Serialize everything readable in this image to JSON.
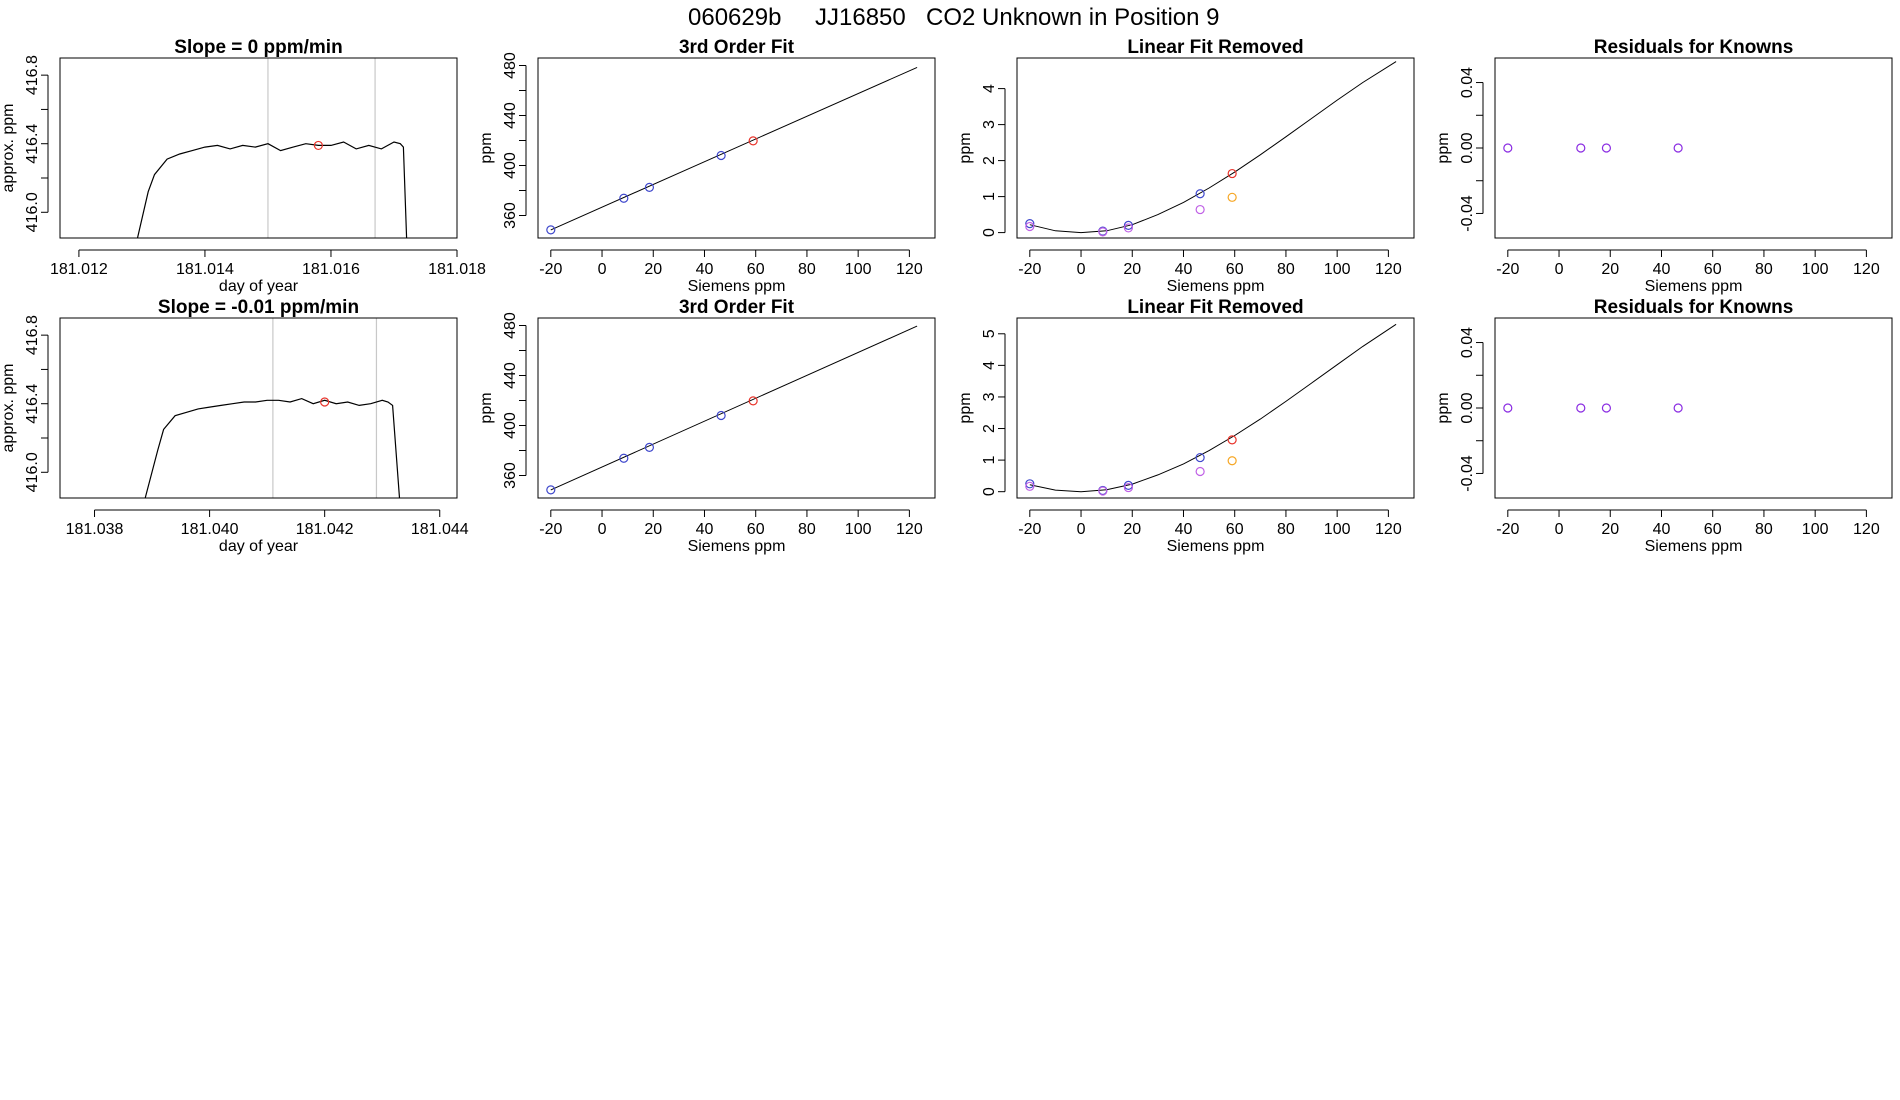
{
  "title_parts": [
    "060629b",
    "JJ16850",
    "CO2 Unknown in Position  9"
  ],
  "chart_data": [
    {
      "type": "line",
      "title": "Slope =  0  ppm/min",
      "xlabel": "day of year",
      "ylabel": "approx. ppm",
      "xlim": [
        181.0117,
        181.018
      ],
      "ylim": [
        415.85,
        416.9
      ],
      "xticks": [
        "181.012",
        "181.014",
        "181.016",
        "181.018"
      ],
      "xtick_values": [
        181.012,
        181.014,
        181.016,
        181.018
      ],
      "yticks": [
        "416.0",
        "416.4",
        "416.8"
      ],
      "ytick_values": [
        416.0,
        416.4,
        416.8
      ],
      "ytick_minor": [
        416.2,
        416.6
      ],
      "vlines": [
        181.015,
        181.0167
      ],
      "series": [
        {
          "x": [
            181.01293,
            181.0131,
            181.0132,
            181.0134,
            181.0136,
            181.0138,
            181.014,
            181.0142,
            181.0144,
            181.0146,
            181.0148,
            181.015,
            181.0152,
            181.0154,
            181.0156,
            181.0158,
            181.016,
            181.0162,
            181.0164,
            181.0166,
            181.0168,
            181.017,
            181.0171,
            181.01715,
            181.0172
          ],
          "y": [
            415.85,
            416.12,
            416.22,
            416.31,
            416.34,
            416.36,
            416.38,
            416.39,
            416.37,
            416.39,
            416.38,
            416.4,
            416.36,
            416.38,
            416.4,
            416.39,
            416.39,
            416.41,
            416.37,
            416.39,
            416.37,
            416.41,
            416.4,
            416.38,
            415.85
          ],
          "color": "#000000"
        }
      ],
      "points": [
        {
          "x": 181.0158,
          "y": 416.39,
          "color": "#e8332a"
        }
      ]
    },
    {
      "type": "scatter",
      "title": "3rd Order Fit",
      "xlabel": "Siemens ppm",
      "ylabel": "ppm",
      "xlim": [
        -25,
        130
      ],
      "ylim": [
        342,
        486
      ],
      "xticks": [
        "-20",
        "0",
        "20",
        "40",
        "60",
        "80",
        "100",
        "120"
      ],
      "xtick_values": [
        -20,
        0,
        20,
        40,
        60,
        80,
        100,
        120
      ],
      "yticks": [
        "360",
        "400",
        "440",
        "480"
      ],
      "ytick_values": [
        360,
        400,
        440,
        480
      ],
      "ytick_minor": [
        380,
        420,
        460
      ],
      "curve": {
        "x": [
          -20,
          123
        ],
        "y": [
          348.5,
          478.5
        ]
      },
      "points": [
        {
          "x": -20,
          "y": 348.5,
          "color": "#3f48cc"
        },
        {
          "x": 8.5,
          "y": 373.8,
          "color": "#3f48cc"
        },
        {
          "x": 18.5,
          "y": 382.5,
          "color": "#3f48cc"
        },
        {
          "x": 46.5,
          "y": 408.0,
          "color": "#3f48cc"
        },
        {
          "x": 59,
          "y": 419.7,
          "color": "#e8332a"
        }
      ]
    },
    {
      "type": "scatter",
      "title": "Linear Fit Removed",
      "xlabel": "Siemens ppm",
      "ylabel": "ppm",
      "xlim": [
        -25,
        130
      ],
      "ylim": [
        -0.15,
        4.85
      ],
      "xticks": [
        "-20",
        "0",
        "20",
        "40",
        "60",
        "80",
        "100",
        "120"
      ],
      "xtick_values": [
        -20,
        0,
        20,
        40,
        60,
        80,
        100,
        120
      ],
      "yticks": [
        "0",
        "1",
        "2",
        "3",
        "4"
      ],
      "ytick_values": [
        0,
        1,
        2,
        3,
        4
      ],
      "curve": {
        "x": [
          -20,
          -10,
          0,
          10,
          20,
          30,
          40,
          50,
          60,
          70,
          80,
          90,
          100,
          110,
          123
        ],
        "y": [
          0.22,
          0.05,
          0.0,
          0.05,
          0.22,
          0.5,
          0.84,
          1.24,
          1.68,
          2.16,
          2.66,
          3.17,
          3.68,
          4.17,
          4.75
        ]
      },
      "points": [
        {
          "x": -20,
          "y": 0.25,
          "color": "#3f48cc"
        },
        {
          "x": -20,
          "y": 0.17,
          "color": "#c061e6"
        },
        {
          "x": 8.5,
          "y": 0.04,
          "color": "#3f48cc"
        },
        {
          "x": 8.5,
          "y": 0.02,
          "color": "#c061e6"
        },
        {
          "x": 18.5,
          "y": 0.2,
          "color": "#3f48cc"
        },
        {
          "x": 18.5,
          "y": 0.13,
          "color": "#c061e6"
        },
        {
          "x": 46.5,
          "y": 1.08,
          "color": "#3f48cc"
        },
        {
          "x": 46.5,
          "y": 0.64,
          "color": "#c061e6"
        },
        {
          "x": 59,
          "y": 1.64,
          "color": "#e8332a"
        },
        {
          "x": 59,
          "y": 0.98,
          "color": "#f6a623"
        }
      ]
    },
    {
      "type": "scatter",
      "title": "Residuals for Knowns",
      "xlabel": "Siemens ppm",
      "ylabel": "ppm",
      "xlim": [
        -25,
        130
      ],
      "ylim": [
        -0.055,
        0.055
      ],
      "xticks": [
        "-20",
        "0",
        "20",
        "40",
        "60",
        "80",
        "100",
        "120"
      ],
      "xtick_values": [
        -20,
        0,
        20,
        40,
        60,
        80,
        100,
        120
      ],
      "yticks": [
        "-0.04",
        "0.00",
        "0.04"
      ],
      "ytick_values": [
        -0.04,
        0.0,
        0.04
      ],
      "ytick_minor": [
        -0.02,
        0.02
      ],
      "points": [
        {
          "x": -20,
          "y": 0.0,
          "color": "#8a2be2"
        },
        {
          "x": 8.5,
          "y": 0.0,
          "color": "#8a2be2"
        },
        {
          "x": 18.5,
          "y": 0.0,
          "color": "#8a2be2"
        },
        {
          "x": 46.5,
          "y": 0.0,
          "color": "#8a2be2"
        }
      ]
    },
    {
      "type": "line",
      "title": "Slope =  -0.01  ppm/min",
      "xlabel": "day of year",
      "ylabel": "approx. ppm",
      "xlim": [
        181.0374,
        181.0443
      ],
      "ylim": [
        415.85,
        416.9
      ],
      "xticks": [
        "181.038",
        "181.040",
        "181.042",
        "181.044"
      ],
      "xtick_values": [
        181.038,
        181.04,
        181.042,
        181.044
      ],
      "yticks": [
        "416.0",
        "416.4",
        "416.8"
      ],
      "ytick_values": [
        416.0,
        416.4,
        416.8
      ],
      "ytick_minor": [
        416.2,
        416.6
      ],
      "vlines": [
        181.0411,
        181.0429
      ],
      "series": [
        {
          "x": [
            181.03888,
            181.0391,
            181.0392,
            181.0394,
            181.0396,
            181.0398,
            181.04,
            181.0402,
            181.0404,
            181.0406,
            181.0408,
            181.041,
            181.0412,
            181.0414,
            181.0416,
            181.0418,
            181.042,
            181.0422,
            181.0424,
            181.0426,
            181.0428,
            181.043,
            181.0431,
            181.04318,
            181.0433
          ],
          "y": [
            415.85,
            416.13,
            416.25,
            416.33,
            416.35,
            416.37,
            416.38,
            416.39,
            416.4,
            416.41,
            416.41,
            416.42,
            416.42,
            416.41,
            416.43,
            416.4,
            416.42,
            416.4,
            416.41,
            416.39,
            416.4,
            416.42,
            416.41,
            416.39,
            415.85
          ],
          "color": "#000000"
        }
      ],
      "points": [
        {
          "x": 181.042,
          "y": 416.41,
          "color": "#e8332a"
        }
      ]
    },
    {
      "type": "scatter",
      "title": "3rd Order Fit",
      "xlabel": "Siemens ppm",
      "ylabel": "ppm",
      "xlim": [
        -25,
        130
      ],
      "ylim": [
        342,
        486
      ],
      "xticks": [
        "-20",
        "0",
        "20",
        "40",
        "60",
        "80",
        "100",
        "120"
      ],
      "xtick_values": [
        -20,
        0,
        20,
        40,
        60,
        80,
        100,
        120
      ],
      "yticks": [
        "360",
        "400",
        "440",
        "480"
      ],
      "ytick_values": [
        360,
        400,
        440,
        480
      ],
      "ytick_minor": [
        380,
        420,
        460
      ],
      "curve": {
        "x": [
          -20,
          123
        ],
        "y": [
          348.5,
          479.5
        ]
      },
      "points": [
        {
          "x": -20,
          "y": 348.5,
          "color": "#3f48cc"
        },
        {
          "x": 8.5,
          "y": 373.8,
          "color": "#3f48cc"
        },
        {
          "x": 18.5,
          "y": 382.5,
          "color": "#3f48cc"
        },
        {
          "x": 46.5,
          "y": 408.0,
          "color": "#3f48cc"
        },
        {
          "x": 59,
          "y": 419.7,
          "color": "#e8332a"
        }
      ]
    },
    {
      "type": "scatter",
      "title": "Linear Fit Removed",
      "xlabel": "Siemens ppm",
      "ylabel": "ppm",
      "xlim": [
        -25,
        130
      ],
      "ylim": [
        -0.2,
        5.5
      ],
      "xticks": [
        "-20",
        "0",
        "20",
        "40",
        "60",
        "80",
        "100",
        "120"
      ],
      "xtick_values": [
        -20,
        0,
        20,
        40,
        60,
        80,
        100,
        120
      ],
      "yticks": [
        "0",
        "1",
        "2",
        "3",
        "4",
        "5"
      ],
      "ytick_values": [
        0,
        1,
        2,
        3,
        4,
        5
      ],
      "curve": {
        "x": [
          -20,
          -10,
          0,
          10,
          20,
          30,
          40,
          50,
          60,
          70,
          80,
          90,
          100,
          110,
          123
        ],
        "y": [
          0.22,
          0.05,
          0.0,
          0.06,
          0.24,
          0.53,
          0.88,
          1.3,
          1.78,
          2.3,
          2.86,
          3.44,
          4.02,
          4.6,
          5.3
        ]
      },
      "points": [
        {
          "x": -20,
          "y": 0.25,
          "color": "#3f48cc"
        },
        {
          "x": -20,
          "y": 0.17,
          "color": "#c061e6"
        },
        {
          "x": 8.5,
          "y": 0.04,
          "color": "#3f48cc"
        },
        {
          "x": 8.5,
          "y": 0.02,
          "color": "#c061e6"
        },
        {
          "x": 18.5,
          "y": 0.2,
          "color": "#3f48cc"
        },
        {
          "x": 18.5,
          "y": 0.13,
          "color": "#c061e6"
        },
        {
          "x": 46.5,
          "y": 1.08,
          "color": "#3f48cc"
        },
        {
          "x": 46.5,
          "y": 0.64,
          "color": "#c061e6"
        },
        {
          "x": 59,
          "y": 1.64,
          "color": "#e8332a"
        },
        {
          "x": 59,
          "y": 0.98,
          "color": "#f6a623"
        }
      ]
    },
    {
      "type": "scatter",
      "title": "Residuals for Knowns",
      "xlabel": "Siemens ppm",
      "ylabel": "ppm",
      "xlim": [
        -25,
        130
      ],
      "ylim": [
        -0.055,
        0.055
      ],
      "xticks": [
        "-20",
        "0",
        "20",
        "40",
        "60",
        "80",
        "100",
        "120"
      ],
      "xtick_values": [
        -20,
        0,
        20,
        40,
        60,
        80,
        100,
        120
      ],
      "yticks": [
        "-0.04",
        "0.00",
        "0.04"
      ],
      "ytick_values": [
        -0.04,
        0.0,
        0.04
      ],
      "ytick_minor": [
        -0.02,
        0.02
      ],
      "points": [
        {
          "x": -20,
          "y": 0.0,
          "color": "#8a2be2"
        },
        {
          "x": 8.5,
          "y": 0.0,
          "color": "#8a2be2"
        },
        {
          "x": 18.5,
          "y": 0.0,
          "color": "#8a2be2"
        },
        {
          "x": 46.5,
          "y": 0.0,
          "color": "#8a2be2"
        }
      ]
    }
  ]
}
